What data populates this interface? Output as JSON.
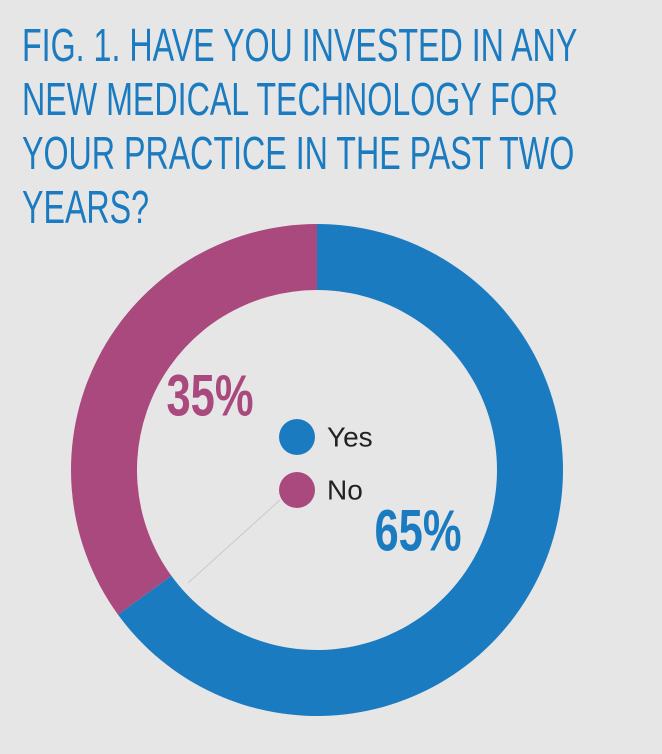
{
  "chart_data": {
    "type": "pie",
    "title": "FIG. 1. HAVE YOU INVESTED IN ANY NEW MEDICAL TECHNOLOGY FOR YOUR PRACTICE IN THE PAST TWO YEARS?",
    "categories": [
      "Yes",
      "No"
    ],
    "values": [
      65,
      35
    ],
    "value_labels": [
      "65%",
      "35%"
    ],
    "colors": [
      "#1b7bc0",
      "#a9497d"
    ]
  }
}
